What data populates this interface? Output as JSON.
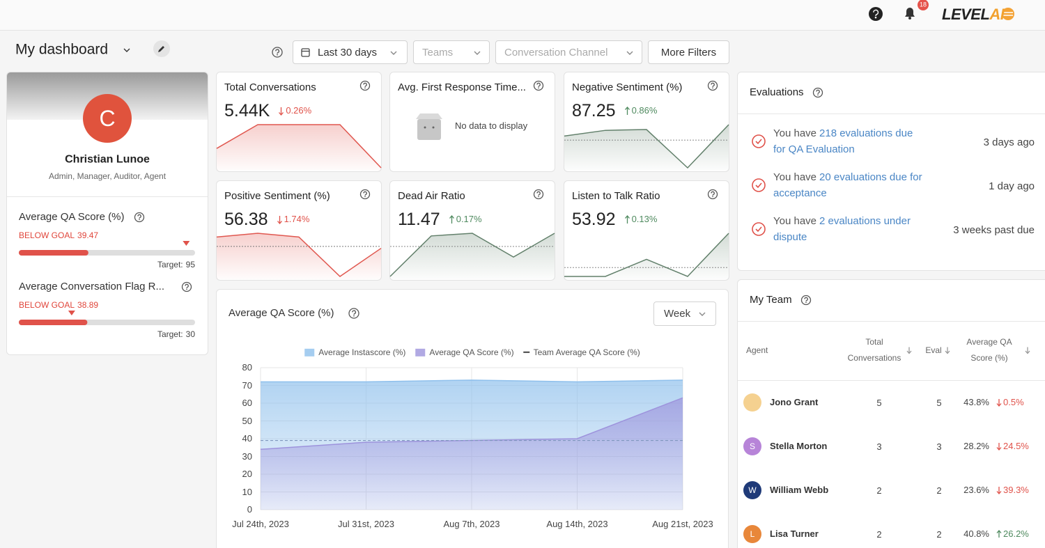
{
  "header": {
    "notifications": "18",
    "logo": "LEVEL",
    "logo_accent": "AI"
  },
  "dashboard": {
    "title": "My dashboard"
  },
  "filters": {
    "date_range": "Last 30 days",
    "teams": "Teams",
    "channel": "Conversation Channel",
    "more": "More Filters"
  },
  "profile": {
    "initial": "C",
    "name": "Christian Lunoe",
    "roles": "Admin, Manager, Auditor, Agent"
  },
  "goals": [
    {
      "label": "Average QA Score (%)",
      "status": "BELOW GOAL",
      "value": 39.47,
      "target_label": "Target:",
      "target": 95
    },
    {
      "label": "Average Conversation Flag R...",
      "status": "BELOW GOAL",
      "value": 38.89,
      "target_label": "Target:",
      "target": 30
    }
  ],
  "kpis": [
    {
      "title": "Total Conversations",
      "value": "5.44K",
      "change": "0.26%",
      "trend": "down",
      "color": "#e0574f",
      "sparkline": [
        32,
        64,
        64,
        64,
        6
      ]
    },
    {
      "title": "Avg. First Response Time...",
      "empty": "No data to display"
    },
    {
      "title": "Negative Sentiment (%)",
      "value": 87.25,
      "change": "0.86%",
      "trend": "up",
      "color": "#62806b",
      "sparkline": [
        52,
        59,
        60,
        13,
        66
      ],
      "baseline": 47
    },
    {
      "title": "Positive Sentiment (%)",
      "value": 56.38,
      "change": "1.74%",
      "trend": "down",
      "color": "#e0574f",
      "sparkline": [
        50,
        54,
        50,
        8,
        38
      ],
      "baseline": 40
    },
    {
      "title": "Dead Air Ratio",
      "value": 11.47,
      "change": "0.17%",
      "trend": "up",
      "color": "#62806b",
      "sparkline": [
        8,
        54,
        57,
        30,
        57
      ],
      "baseline": 42
    },
    {
      "title": "Listen to Talk Ratio",
      "value": 53.92,
      "change": "0.13%",
      "trend": "up",
      "color": "#62806b",
      "sparkline": [
        10,
        10,
        33,
        10,
        68
      ],
      "baseline": 22
    }
  ],
  "evaluations": {
    "title": "Evaluations",
    "items": [
      {
        "lead": "You have",
        "link": "218 evaluations due for QA Evaluation",
        "when": "3 days ago"
      },
      {
        "lead": "You have",
        "link": "20 evaluations due for acceptance",
        "when": "1 day ago"
      },
      {
        "lead": "You have",
        "link": "2 evaluations under dispute",
        "when": "3 weeks past due"
      }
    ]
  },
  "team": {
    "title": "My Team",
    "columns": [
      "Agent",
      "Total Conversations",
      "Eval",
      "Average QA Score (%)"
    ],
    "rows": [
      {
        "initial": null,
        "color": "#f5d190",
        "name": "Jono Grant",
        "total": 5,
        "eval": 5,
        "score": "43.8%",
        "change": "0.5%",
        "trend": "down"
      },
      {
        "initial": "S",
        "color": "#b784d8",
        "name": "Stella Morton",
        "total": 3,
        "eval": 3,
        "score": "28.2%",
        "change": "24.5%",
        "trend": "down"
      },
      {
        "initial": "W",
        "color": "#1f3a78",
        "name": "William Webb",
        "total": 2,
        "eval": 2,
        "score": "23.6%",
        "change": "39.3%",
        "trend": "down"
      },
      {
        "initial": "L",
        "color": "#e8873a",
        "name": "Lisa Turner",
        "total": 2,
        "eval": 2,
        "score": "40.8%",
        "change": "26.2%",
        "trend": "up"
      }
    ]
  },
  "qa_panel": {
    "period": "Week"
  },
  "chart_data": {
    "type": "area",
    "title": "Average QA Score (%)",
    "categories": [
      "Jul 24th, 2023",
      "Jul 31st, 2023",
      "Aug 7th, 2023",
      "Aug 14th, 2023",
      "Aug 21st, 2023"
    ],
    "series": [
      {
        "name": "Average Instascore (%)",
        "color": "#8fc0ec",
        "fill": true,
        "values": [
          72,
          72,
          73,
          72,
          73
        ]
      },
      {
        "name": "Average QA Score (%)",
        "color": "#9d93dc",
        "fill": true,
        "values": [
          34,
          38,
          39,
          40,
          63
        ]
      },
      {
        "name": "Team Average QA Score (%)",
        "color": "#7f97bd",
        "dashed": true,
        "values": [
          39,
          39,
          39,
          39,
          39
        ]
      }
    ],
    "ylim": [
      0,
      80
    ],
    "yticks": [
      0,
      10,
      20,
      30,
      40,
      50,
      60,
      70,
      80
    ],
    "grid": true
  }
}
